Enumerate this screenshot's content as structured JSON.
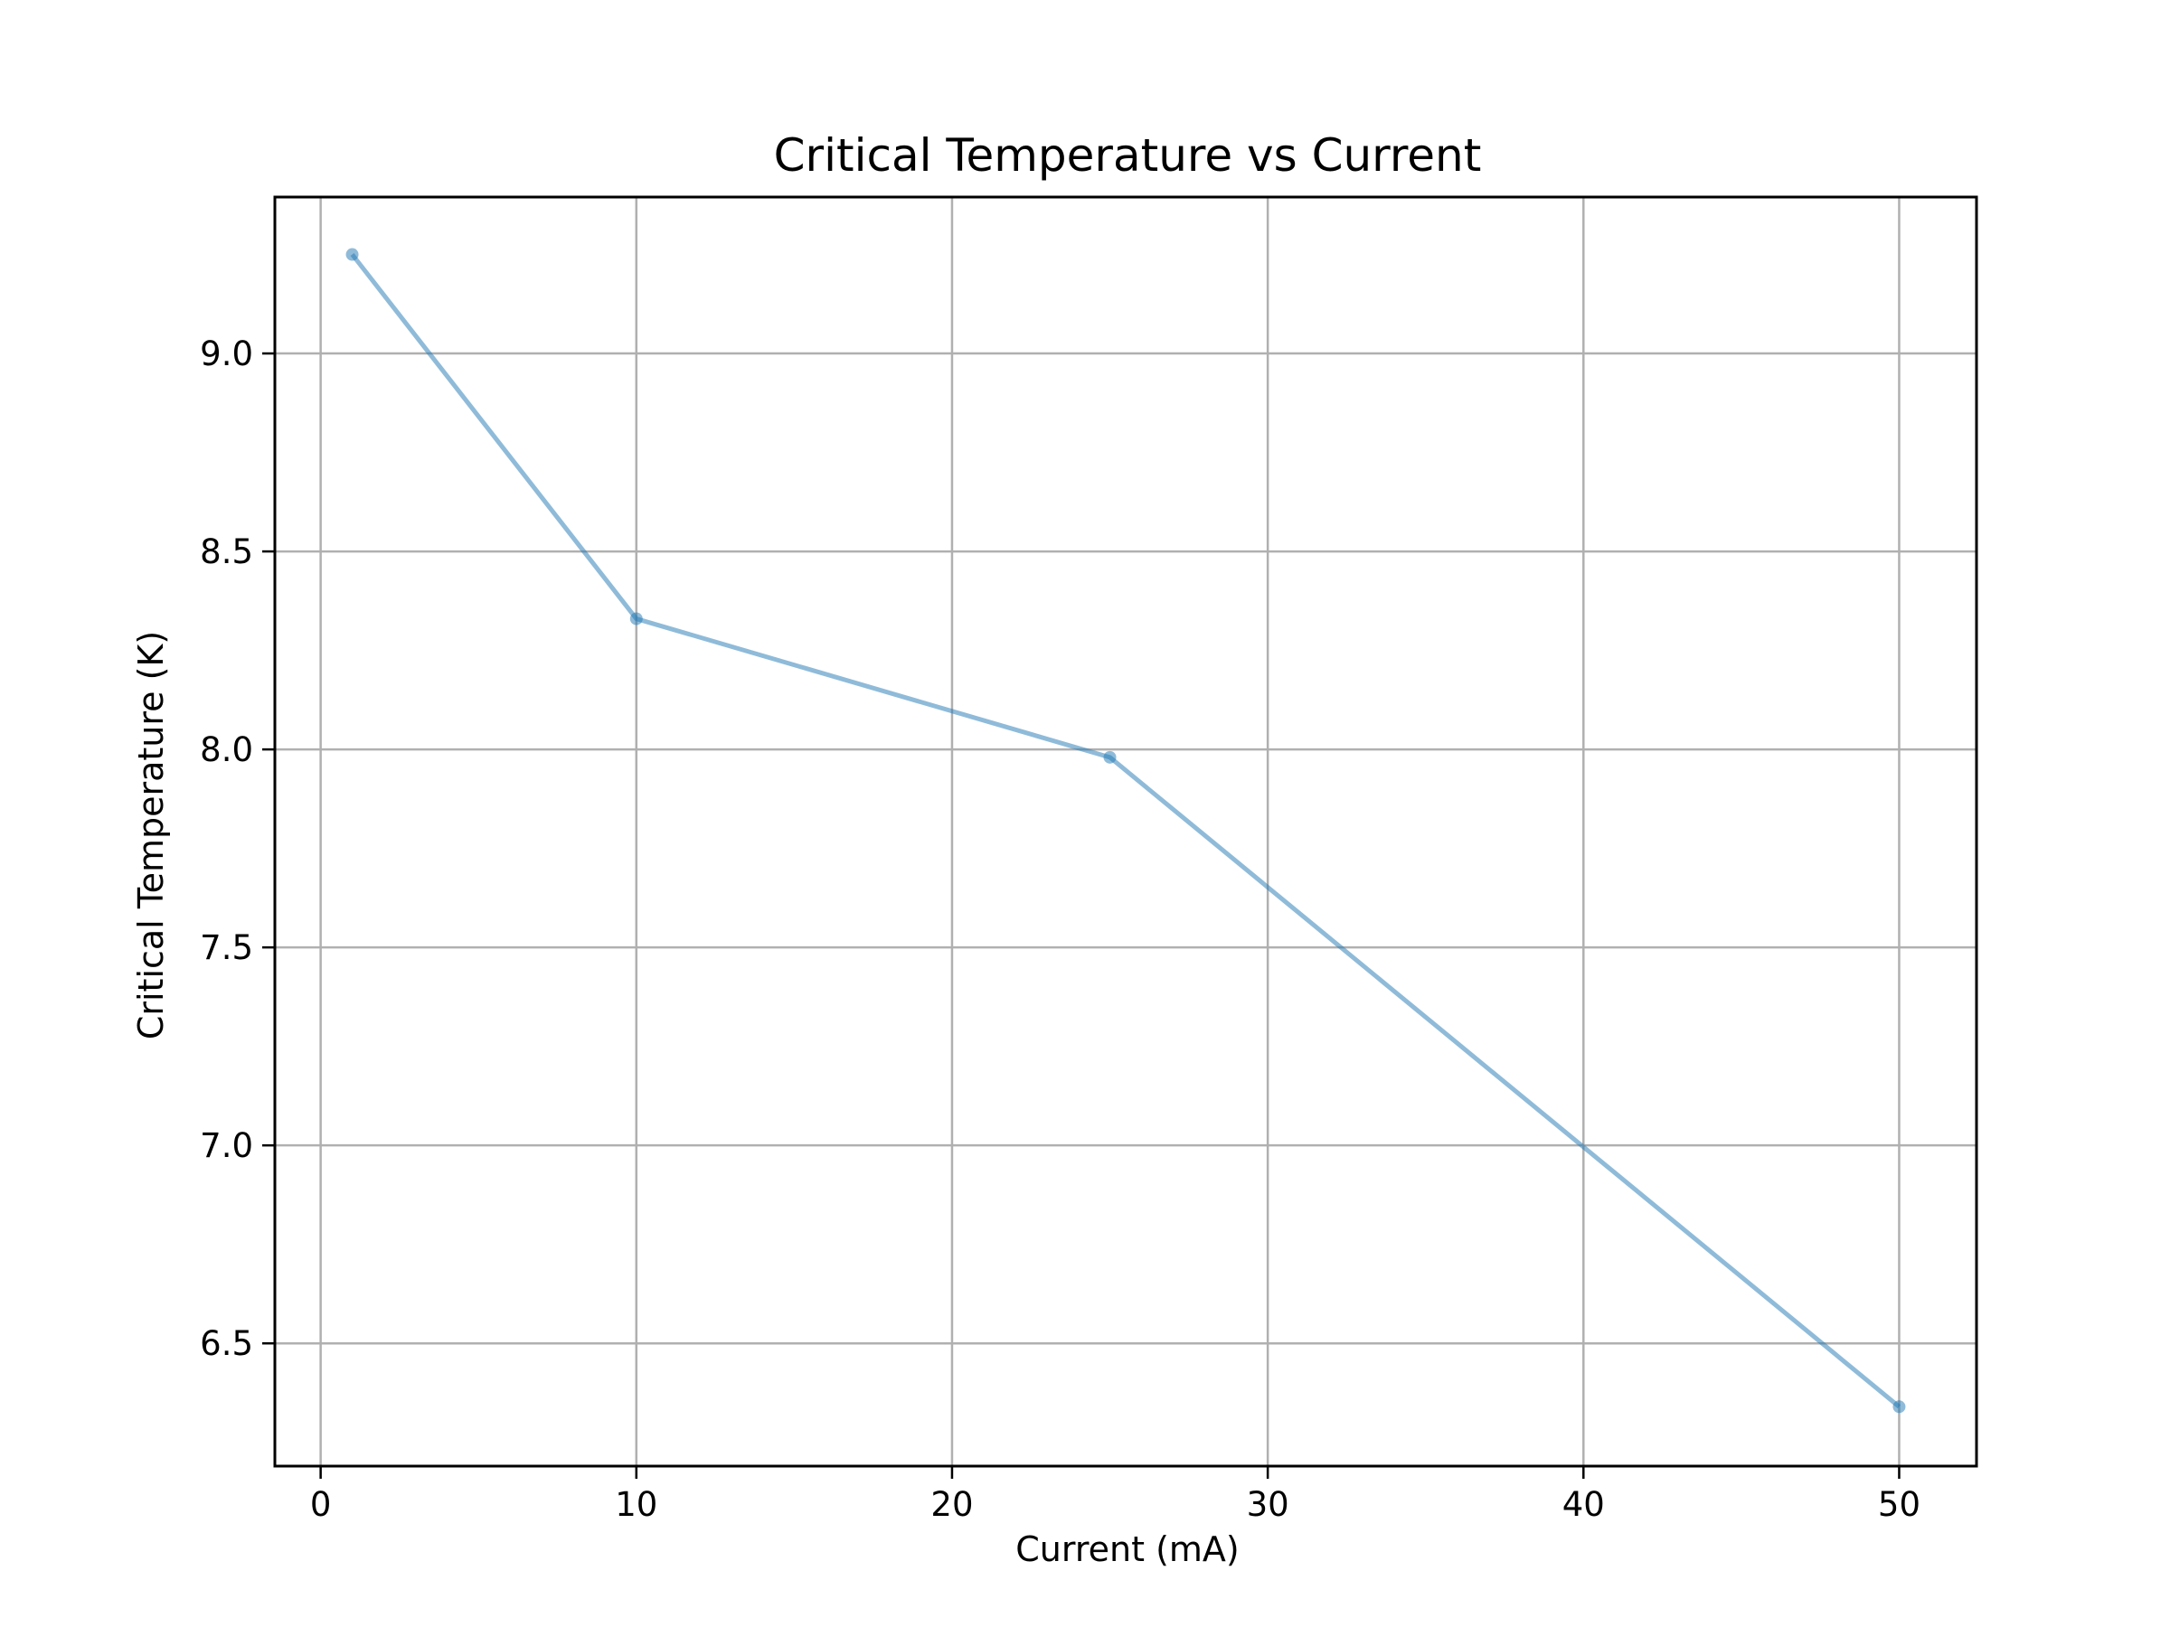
{
  "chart_data": {
    "type": "line",
    "title": "Critical Temperature vs Current",
    "xlabel": "Current (mA)",
    "ylabel": "Critical Temperature (K)",
    "xlim": [
      -1.45,
      52.45
    ],
    "ylim": [
      6.19,
      9.395
    ],
    "x_ticks": [
      0,
      10,
      20,
      30,
      40,
      50
    ],
    "x_tick_labels": [
      "0",
      "10",
      "20",
      "30",
      "40",
      "50"
    ],
    "y_ticks": [
      6.5,
      7.0,
      7.5,
      8.0,
      8.5,
      9.0
    ],
    "y_tick_labels": [
      "6.5",
      "7.0",
      "7.5",
      "8.0",
      "8.5",
      "9.0"
    ],
    "grid": true,
    "legend": "none",
    "series": [
      {
        "x": [
          1,
          10,
          25,
          50
        ],
        "y": [
          9.25,
          8.33,
          7.98,
          6.34
        ],
        "color": "#1f77b4",
        "marker": "circle"
      }
    ]
  }
}
